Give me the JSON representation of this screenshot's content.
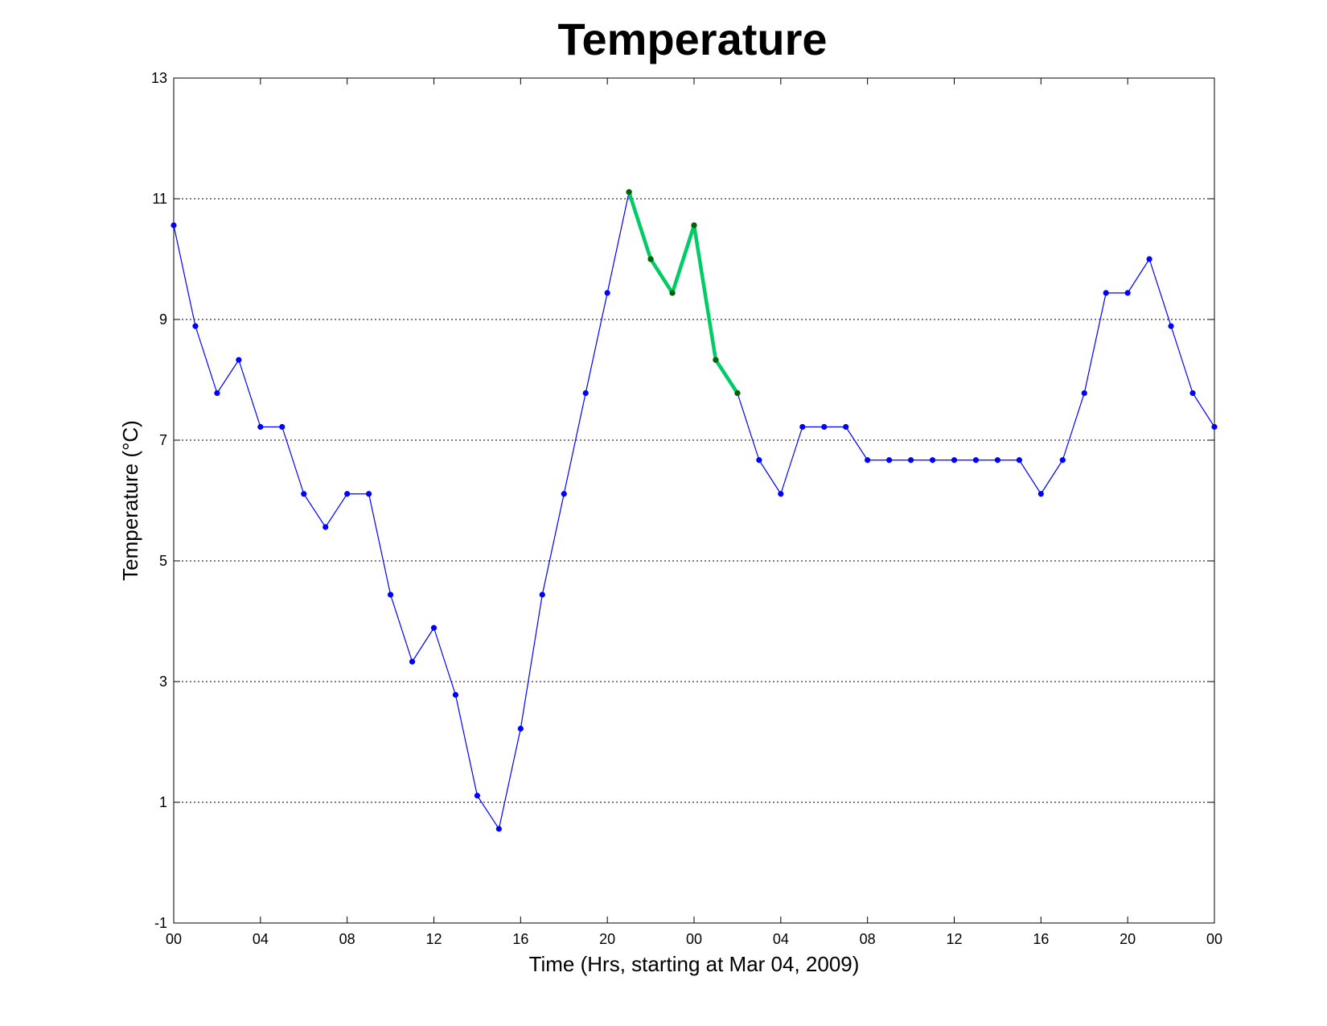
{
  "chart_data": {
    "type": "line",
    "title": "Temperature",
    "xlabel": "Time (Hrs, starting at Mar 04, 2009)",
    "ylabel": "Temperature (°C)",
    "ylim": [
      -1,
      13
    ],
    "xlim": [
      0,
      48
    ],
    "yticks": [
      "-1",
      "1",
      "3",
      "5",
      "7",
      "9",
      "11",
      "13"
    ],
    "xticks": [
      {
        "x": 0,
        "label": "00"
      },
      {
        "x": 4,
        "label": "04"
      },
      {
        "x": 8,
        "label": "08"
      },
      {
        "x": 12,
        "label": "12"
      },
      {
        "x": 16,
        "label": "16"
      },
      {
        "x": 20,
        "label": "20"
      },
      {
        "x": 24,
        "label": "00"
      },
      {
        "x": 28,
        "label": "04"
      },
      {
        "x": 32,
        "label": "08"
      },
      {
        "x": 36,
        "label": "12"
      },
      {
        "x": 40,
        "label": "16"
      },
      {
        "x": 44,
        "label": "20"
      },
      {
        "x": 48,
        "label": "00"
      }
    ],
    "grid": "y-dotted",
    "series": [
      {
        "color": "#0000ff",
        "x": [
          0,
          1,
          2,
          3,
          4,
          5,
          6,
          7,
          8,
          9,
          10,
          11,
          12,
          13,
          14,
          15,
          16,
          17,
          18,
          19,
          20,
          21,
          22,
          23,
          24,
          25,
          26,
          27,
          28,
          29,
          30,
          31,
          32,
          33,
          34,
          35,
          36,
          37,
          38,
          39,
          40,
          41,
          42,
          43,
          44,
          45,
          46,
          47,
          48
        ],
        "y": [
          10.56,
          8.89,
          7.78,
          8.33,
          7.22,
          7.22,
          6.11,
          5.56,
          6.11,
          6.11,
          4.44,
          3.33,
          3.89,
          2.78,
          1.11,
          0.56,
          2.22,
          4.44,
          6.11,
          7.78,
          9.44,
          11.11,
          10.0,
          9.44,
          10.56,
          8.33,
          7.78,
          6.67,
          6.11,
          7.22,
          7.22,
          7.22,
          6.67,
          6.67,
          6.67,
          6.67,
          6.67,
          6.67,
          6.67,
          6.67,
          6.11,
          6.67,
          7.78,
          9.44,
          9.44,
          10.0,
          8.89,
          7.78,
          7.22
        ]
      },
      {
        "color": "#00cc66",
        "x": [
          21,
          22,
          23,
          24,
          25,
          26
        ],
        "y": [
          11.11,
          10.0,
          9.44,
          10.56,
          8.33,
          7.78
        ]
      }
    ]
  }
}
